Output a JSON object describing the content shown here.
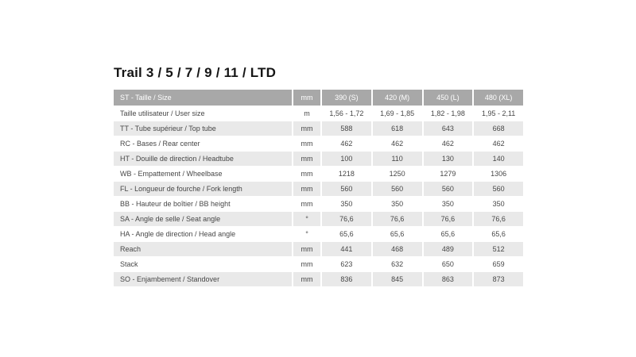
{
  "page": {
    "title": "Trail 3 / 5 / 7 / 9 / 11 / LTD"
  },
  "table": {
    "header": {
      "label": "ST - Taille / Size",
      "unit": "mm",
      "sizes": [
        "390 (S)",
        "420 (M)",
        "450 (L)",
        "480 (XL)"
      ]
    },
    "rows": [
      {
        "label": "Taille utilisateur / User size",
        "unit": "m",
        "values": [
          "1,56 - 1,72",
          "1,69 - 1,85",
          "1,82 - 1,98",
          "1,95 - 2,11"
        ]
      },
      {
        "label": "TT - Tube supérieur / Top tube",
        "unit": "mm",
        "values": [
          "588",
          "618",
          "643",
          "668"
        ]
      },
      {
        "label": "RC - Bases / Rear center",
        "unit": "mm",
        "values": [
          "462",
          "462",
          "462",
          "462"
        ]
      },
      {
        "label": "HT - Douille de direction / Headtube",
        "unit": "mm",
        "values": [
          "100",
          "110",
          "130",
          "140"
        ]
      },
      {
        "label": "WB - Empattement / Wheelbase",
        "unit": "mm",
        "values": [
          "1218",
          "1250",
          "1279",
          "1306"
        ]
      },
      {
        "label": "FL - Longueur de fourche / Fork length",
        "unit": "mm",
        "values": [
          "560",
          "560",
          "560",
          "560"
        ]
      },
      {
        "label": "BB - Hauteur de boîtier / BB height",
        "unit": "mm",
        "values": [
          "350",
          "350",
          "350",
          "350"
        ]
      },
      {
        "label": "SA - Angle de selle / Seat angle",
        "unit": "°",
        "values": [
          "76,6",
          "76,6",
          "76,6",
          "76,6"
        ]
      },
      {
        "label": "HA - Angle de direction / Head angle",
        "unit": "°",
        "values": [
          "65,6",
          "65,6",
          "65,6",
          "65,6"
        ]
      },
      {
        "label": "Reach",
        "unit": "mm",
        "values": [
          "441",
          "468",
          "489",
          "512"
        ]
      },
      {
        "label": "Stack",
        "unit": "mm",
        "values": [
          "623",
          "632",
          "650",
          "659"
        ]
      },
      {
        "label": "SO - Enjambement / Standover",
        "unit": "mm",
        "values": [
          "836",
          "845",
          "863",
          "873"
        ]
      }
    ]
  },
  "colors": {
    "header_bg": "#a8a8a8",
    "header_text": "#ffffff",
    "row_shaded": "#e9e9e9",
    "row_plain": "#ffffff",
    "body_text": "#474747",
    "title_text": "#151515"
  }
}
